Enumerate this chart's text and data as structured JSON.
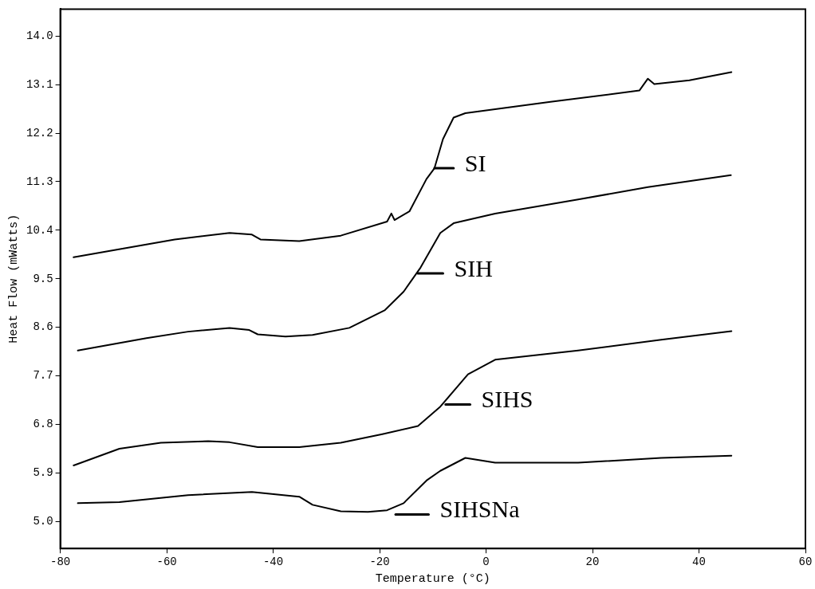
{
  "chart_data": {
    "type": "line",
    "xlabel": "Temperature (°C)",
    "ylabel": "Heat Flow (mWatts)",
    "xlim": [
      -80,
      60
    ],
    "xticks": [
      -80,
      -60,
      -40,
      -20,
      0,
      20,
      40,
      60
    ],
    "ylim": [
      4.5,
      14.5
    ],
    "yticks": [
      {
        "value": 5,
        "label": "5.0"
      },
      5.9,
      6.8,
      7.7,
      8.6,
      9.5,
      10.4,
      11.3,
      12.2,
      13.1,
      {
        "value": 14,
        "label": "14.0"
      }
    ],
    "grid": false,
    "legend": false,
    "marker": "none",
    "line_style": "solid",
    "series": [
      {
        "color": "#000000",
        "x": [
          -77.5,
          -58.5,
          -48.2,
          -44.0,
          -42.4,
          -35.1,
          -27.3,
          -18.6,
          -17.8,
          -17.2,
          -14.4,
          -11.2,
          -9.7,
          -8.1,
          -6.1,
          -3.9,
          12.1,
          28.8,
          30.4,
          31.6,
          38.2,
          46.1
        ],
        "values": [
          9.9,
          10.23,
          10.35,
          10.32,
          10.23,
          10.2,
          10.3,
          10.56,
          10.71,
          10.59,
          10.75,
          11.35,
          11.55,
          12.09,
          12.49,
          12.57,
          12.78,
          12.99,
          13.21,
          13.11,
          13.18,
          13.33
        ]
      },
      {
        "color": "#000000",
        "x": [
          -76.7,
          -63.8,
          -56.0,
          -48.2,
          -44.5,
          -42.9,
          -37.7,
          -32.6,
          -25.7,
          -19.0,
          -15.5,
          -12.3,
          -8.6,
          -6.1,
          1.7,
          17.3,
          30.4,
          46.0
        ],
        "values": [
          8.17,
          8.4,
          8.52,
          8.59,
          8.55,
          8.47,
          8.43,
          8.46,
          8.59,
          8.92,
          9.26,
          9.71,
          10.35,
          10.53,
          10.71,
          10.97,
          11.2,
          11.42
        ]
      },
      {
        "color": "#000000",
        "x": [
          -77.5,
          -68.9,
          -61.1,
          -52.2,
          -48.2,
          -42.9,
          -35.1,
          -27.3,
          -19.5,
          -12.8,
          -8.6,
          -3.4,
          1.7,
          17.3,
          32.9,
          46.1
        ],
        "values": [
          6.04,
          6.35,
          6.46,
          6.49,
          6.47,
          6.38,
          6.38,
          6.46,
          6.62,
          6.77,
          7.13,
          7.73,
          8.0,
          8.17,
          8.37,
          8.53
        ]
      },
      {
        "color": "#000000",
        "x": [
          -76.7,
          -68.9,
          -56.0,
          -44.0,
          -35.1,
          -32.6,
          -27.3,
          -22.2,
          -18.6,
          -15.5,
          -11.2,
          -8.6,
          -3.9,
          1.7,
          17.3,
          32.9,
          46.1
        ],
        "values": [
          5.34,
          5.36,
          5.49,
          5.55,
          5.46,
          5.31,
          5.19,
          5.18,
          5.21,
          5.34,
          5.76,
          5.94,
          6.18,
          6.09,
          6.09,
          6.18,
          6.22
        ]
      },
      {
        "name": "SI",
        "type": "line",
        "color": "#000000",
        "x": [
          -9.7,
          -6.1
        ],
        "values": [
          11.55,
          11.55
        ]
      },
      {
        "name": "SIH",
        "type": "line",
        "color": "#000000",
        "x": [
          -12.8,
          -8.1
        ],
        "values": [
          9.6,
          9.6
        ]
      },
      {
        "name": "SIHS",
        "type": "line",
        "color": "#000000",
        "x": [
          -7.6,
          -3.0
        ],
        "values": [
          7.17,
          7.17
        ]
      },
      {
        "name": "SIHSNa",
        "type": "line",
        "color": "#000000",
        "x": [
          -17.0,
          -10.8
        ],
        "values": [
          5.13,
          5.13
        ]
      }
    ]
  }
}
